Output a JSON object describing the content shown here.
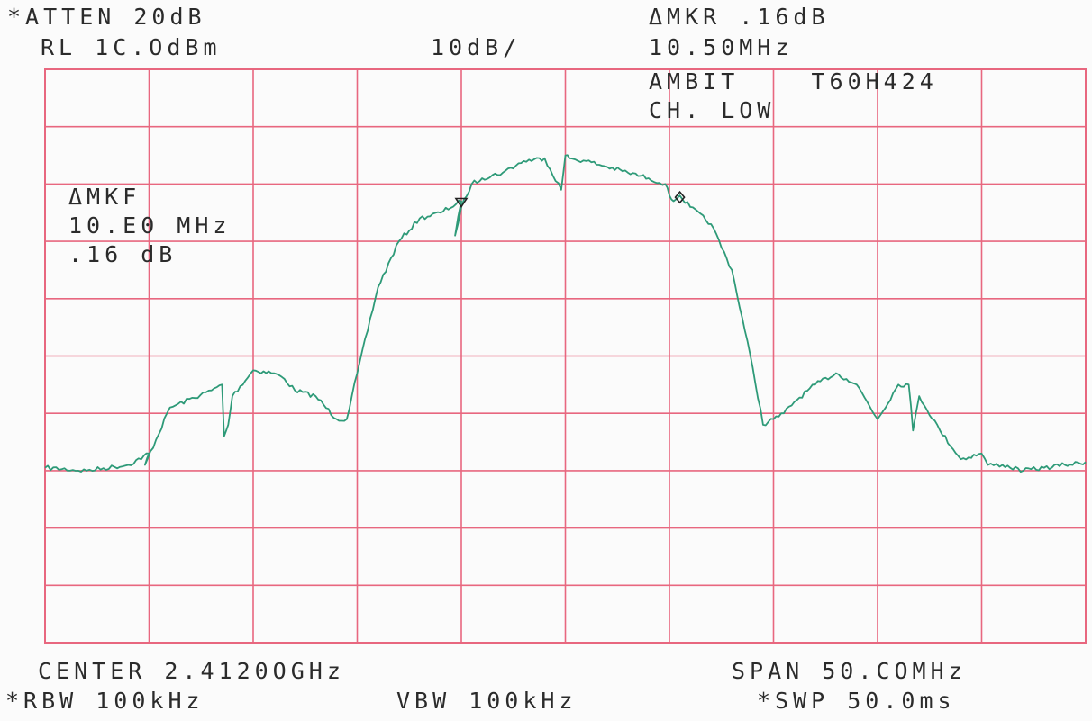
{
  "header": {
    "atten": "*ATTEN 20dB",
    "ref_level": "RL 1C.OdBm",
    "scale": "10dB/",
    "marker_delta": "ΔMKR .16dB",
    "marker_freq": "10.50MHz",
    "device": "AMBIT    T60H424",
    "channel": "CH. LOW"
  },
  "marker_box": {
    "title": "ΔMKF",
    "freq": "10.E0 MHz",
    "level": ".16 dB"
  },
  "footer": {
    "center": "CENTER 2.4120OGHz",
    "span": "SPAN 50.COMHz",
    "rbw": "*RBW 100kHz",
    "vbw": "VBW 100kHz",
    "swp": "*SWP 50.0ms"
  },
  "colors": {
    "grid": "#e8677f",
    "trace": "#2e9a78",
    "text": "#2b2b2b",
    "background": "#fbfbfb"
  },
  "chart_data": {
    "type": "line",
    "title": "",
    "xlabel": "",
    "ylabel": "",
    "x_unit": "MHz offset from center",
    "xlim": [
      -25,
      25
    ],
    "ylim": [
      -90,
      10
    ],
    "grid": true,
    "grid_divisions": {
      "x": 10,
      "y": 10
    },
    "series": [
      {
        "x": [
          -25,
          -23,
          -21,
          -20,
          -20.2,
          -19,
          -17,
          -16.5,
          -16.4,
          -16.2,
          -16,
          -15,
          -14,
          -13.5,
          -13,
          -12,
          -11,
          -10.5,
          -10,
          -9,
          -8,
          -7,
          -6,
          -5,
          -5.3,
          -5,
          -4.5,
          -4,
          -3,
          -2,
          -1,
          -0.2,
          0,
          0.2,
          1,
          2,
          3,
          4,
          4.8,
          5,
          5.2,
          5.5,
          6,
          7,
          8,
          9,
          9.5,
          10,
          10.5,
          11,
          12,
          13,
          13.5,
          14,
          15,
          16,
          16.5,
          16.7,
          17,
          18,
          19,
          20,
          20.3,
          21,
          22,
          23,
          24,
          25
        ],
        "y": [
          -59.5,
          -60,
          -59,
          -57,
          -59,
          -49,
          -46,
          -45,
          -54,
          -52,
          -47,
          -42.5,
          -43,
          -44,
          -46,
          -47,
          -51,
          -51,
          -43,
          -28,
          -20,
          -16,
          -15,
          -13,
          -19,
          -14,
          -10,
          -9,
          -8,
          -6,
          -5.5,
          -11,
          -5,
          -5.5,
          -6,
          -7,
          -8,
          -9,
          -10,
          -12,
          -13,
          -12,
          -14,
          -17,
          -25,
          -42,
          -52,
          -51,
          -50,
          -48,
          -45,
          -43,
          -44,
          -45,
          -51,
          -45,
          -45,
          -53,
          -47,
          -53,
          -58,
          -57,
          -59,
          -59,
          -60,
          -59.5,
          -59,
          -58.5
        ]
      }
    ],
    "markers": [
      {
        "x": -5,
        "y": -13,
        "symbol": "triangle"
      },
      {
        "x": 5.5,
        "y": -12,
        "symbol": "diamond"
      }
    ]
  }
}
